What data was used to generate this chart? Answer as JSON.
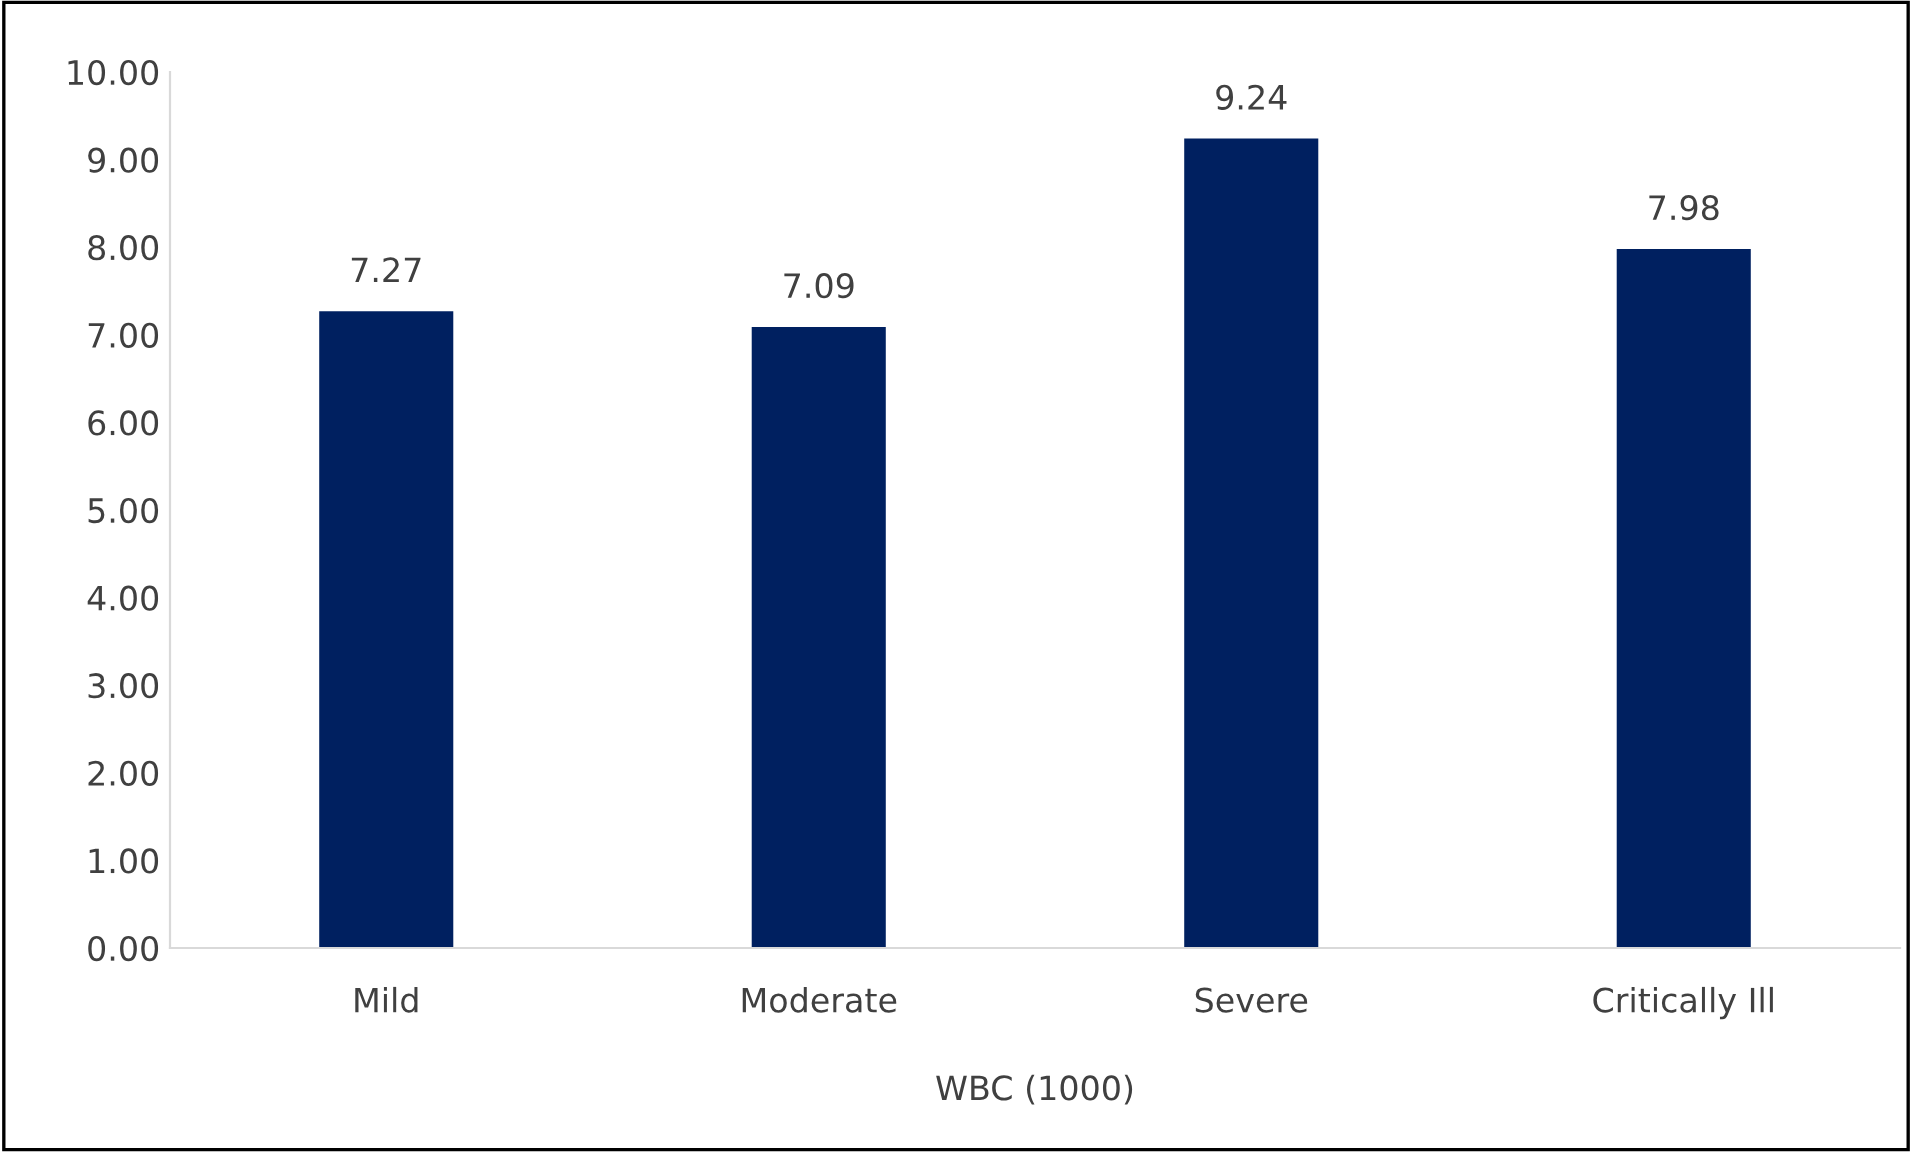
{
  "chart_data": {
    "type": "bar",
    "categories": [
      "Mild",
      "Moderate",
      "Severe",
      "Critically Ill"
    ],
    "values": [
      7.27,
      7.09,
      9.24,
      7.98
    ],
    "color": "#002060",
    "xlabel": "WBC (1000)",
    "ylim": [
      0,
      10
    ],
    "yticks": [
      {
        "value": 0,
        "label": "0.00"
      },
      {
        "value": 1,
        "label": "1.00"
      },
      {
        "value": 2,
        "label": "2.00"
      },
      {
        "value": 3,
        "label": "3.00"
      },
      {
        "value": 4,
        "label": "4.00"
      },
      {
        "value": 5,
        "label": "5.00"
      },
      {
        "value": 6,
        "label": "6.00"
      },
      {
        "value": 7,
        "label": "7.00"
      },
      {
        "value": 8,
        "label": "8.00"
      },
      {
        "value": 9,
        "label": "9.00"
      },
      {
        "value": 10,
        "label": "10.00"
      }
    ],
    "data_labels": true,
    "grid": false
  }
}
